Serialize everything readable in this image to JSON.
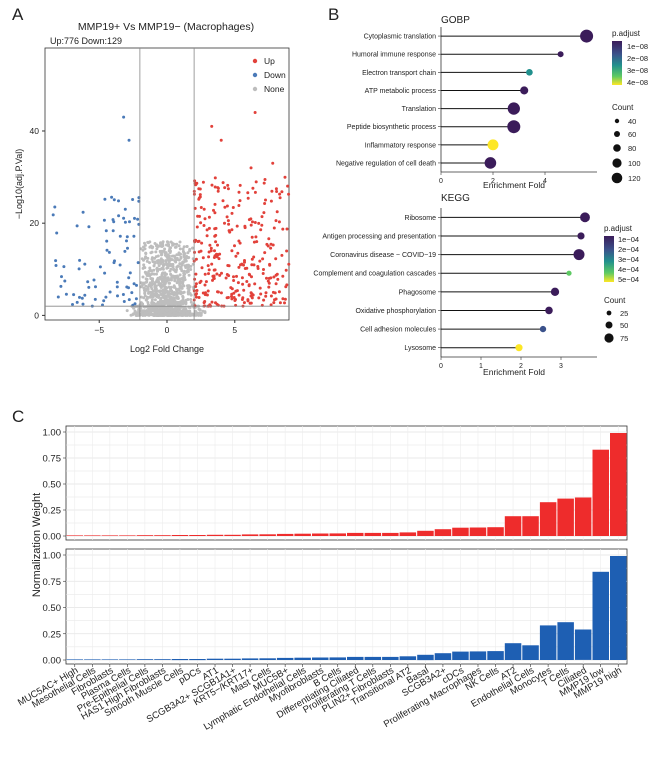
{
  "panels": {
    "a": "A",
    "b": "B",
    "c": "C"
  },
  "volcano": {
    "title": "MMP19+ Vs MMP19− (Macrophages)",
    "counts": "Up:776 Down:129",
    "xlabel": "Log2 Fold Change",
    "ylabel": "−Log10(adj.P.Val)",
    "xticks": [
      "−5",
      "0",
      "5"
    ],
    "yticks": [
      "0",
      "20",
      "40"
    ],
    "legend": [
      "Up",
      "Down",
      "None"
    ],
    "colors": {
      "Up": "#e2413a",
      "Down": "#4a7ab8",
      "None": "#bdbdbd"
    },
    "fc_cutoff": 2,
    "p_cutoff": 2,
    "xlim": [
      -9,
      9
    ],
    "ylim": [
      -1,
      58
    ]
  },
  "gobp": {
    "title": "GOBP",
    "xlabel": "Enrichment Fold",
    "xticks": [
      "0",
      "2",
      "4"
    ],
    "xlim": [
      0,
      6
    ],
    "terms": [
      "Cytoplasmic translation",
      "Humoral immune response",
      "Electron transport chain",
      "ATP metabolic process",
      "Translation",
      "Peptide biosynthetic process",
      "Inflammatory response",
      "Negative regulation of cell death"
    ],
    "fold": [
      5.6,
      4.6,
      3.4,
      3.2,
      2.8,
      2.8,
      2.0,
      1.9
    ],
    "padj": [
      1e-12,
      1e-12,
      2e-08,
      1e-12,
      1e-12,
      1e-12,
      4e-08,
      1e-12
    ],
    "count": [
      120,
      20,
      30,
      50,
      110,
      120,
      90,
      100
    ],
    "padj_title": "p.adjust",
    "padj_ticks": [
      "1e−08",
      "2e−08",
      "3e−08",
      "4e−08"
    ],
    "count_title": "Count",
    "count_ticks": [
      "40",
      "60",
      "80",
      "100",
      "120"
    ]
  },
  "kegg": {
    "title": "KEGG",
    "xlabel": "Enrichment Fold",
    "xticks": [
      "0",
      "1",
      "2",
      "3"
    ],
    "xlim": [
      0,
      3.9
    ],
    "terms": [
      "Ribosome",
      "Antigen processing and presentation",
      "Coronavirus disease − COVID−19",
      "Complement and coagulation cascades",
      "Phagosome",
      "Oxidative phosphorylation",
      "Cell adhesion molecules",
      "Lysosome"
    ],
    "fold": [
      3.6,
      3.5,
      3.45,
      3.2,
      2.85,
      2.7,
      2.55,
      1.95
    ],
    "padj": [
      1e-06,
      1e-06,
      1e-06,
      0.0004,
      1e-06,
      1e-06,
      0.0002,
      0.0006
    ],
    "count": [
      75,
      40,
      90,
      15,
      55,
      45,
      30,
      40
    ],
    "padj_title": "p.adjust",
    "padj_ticks": [
      "1e−04",
      "2e−04",
      "3e−04",
      "4e−04",
      "5e−04"
    ],
    "count_title": "Count",
    "count_ticks": [
      "25",
      "50",
      "75"
    ]
  },
  "chart_data": {
    "type": "bar",
    "ylabel": "Normalization Weight",
    "ylim": [
      0,
      1
    ],
    "yticks": [
      "0.00",
      "0.25",
      "0.50",
      "0.75",
      "1.00"
    ],
    "categories": [
      "MUC5AC+ High",
      "Mesothelial Cells",
      "Fibroblasts",
      "Plasma Cells",
      "Pre-Epithelial Cells",
      "HAS1 High Fibroblasts",
      "Smooth Muscle Cells",
      "pDCs",
      "AT1",
      "SCGB3A2+ SCGB1A1+",
      "KRT5−/KRT17+",
      "Mast Cells",
      "MUC5B+",
      "Lymphatic Endothelial Cells",
      "Myofibroblasts",
      "B Cells",
      "Differentiating Ciliated",
      "Proliferating T Cells",
      "PLIN2+ Fibroblasts",
      "Transitional AT2",
      "Basal",
      "SCGB3A2+",
      "cDCs",
      "Proliferating Macrophages",
      "NK Cells",
      "AT2",
      "Endothelial Cells",
      "Monocytes",
      "T Cells",
      "Ciliated",
      "MMP19 low",
      "MMP19 high"
    ],
    "series": [
      {
        "color": "#ee2c2c",
        "values": [
          0.005,
          0.005,
          0.006,
          0.006,
          0.008,
          0.008,
          0.01,
          0.01,
          0.012,
          0.012,
          0.015,
          0.016,
          0.02,
          0.022,
          0.024,
          0.025,
          0.03,
          0.03,
          0.03,
          0.035,
          0.05,
          0.065,
          0.08,
          0.082,
          0.085,
          0.19,
          0.19,
          0.325,
          0.36,
          0.37,
          0.83,
          0.99
        ]
      },
      {
        "color": "#1e5fb3",
        "values": [
          0.005,
          0.005,
          0.006,
          0.006,
          0.008,
          0.008,
          0.01,
          0.01,
          0.012,
          0.012,
          0.015,
          0.016,
          0.02,
          0.022,
          0.024,
          0.025,
          0.03,
          0.03,
          0.03,
          0.035,
          0.05,
          0.065,
          0.08,
          0.082,
          0.085,
          0.16,
          0.14,
          0.33,
          0.36,
          0.29,
          0.84,
          0.99
        ]
      }
    ]
  }
}
